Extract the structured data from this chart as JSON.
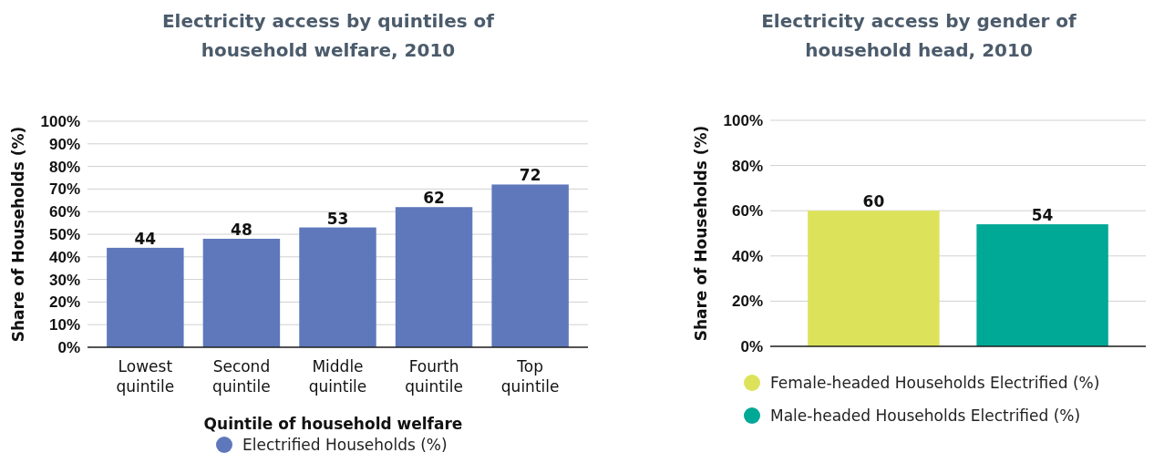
{
  "chart_data": [
    {
      "type": "bar",
      "title": "Electricity access by quintiles of household welfare, 2010",
      "xlabel": "Quintile of household welfare",
      "ylabel": "Share of Households (%)",
      "categories": [
        "Lowest quintile",
        "Second quintile",
        "Middle quintile",
        "Fourth quintile",
        "Top quintile"
      ],
      "series": [
        {
          "name": "Electrified Households (%)",
          "color": "#5e78bb",
          "values": [
            44,
            48,
            53,
            62,
            72
          ]
        }
      ],
      "ylim": [
        0,
        100
      ],
      "yticks": [
        {
          "value": 0,
          "label": "0%"
        },
        {
          "value": 10,
          "label": "10%"
        },
        {
          "value": 20,
          "label": "20%"
        },
        {
          "value": 30,
          "label": "30%"
        },
        {
          "value": 40,
          "label": "40%"
        },
        {
          "value": 50,
          "label": "50%"
        },
        {
          "value": 60,
          "label": "60%"
        },
        {
          "value": 70,
          "label": "70%"
        },
        {
          "value": 80,
          "label": "80%"
        },
        {
          "value": 90,
          "label": "90%"
        },
        {
          "value": 100,
          "label": "100%"
        }
      ],
      "grid": "y",
      "legend": "bottom",
      "data_labels": true
    },
    {
      "type": "bar",
      "title": "Electricity access by gender of household head, 2010",
      "ylabel": "Share of Households (%)",
      "categories": [
        null
      ],
      "series": [
        {
          "name": "Female-headed Households Electrified (%)",
          "color": "#dce35a",
          "values": [
            60
          ]
        },
        {
          "name": "Male-headed Households Electrified (%)",
          "color": "#00a896",
          "values": [
            54
          ]
        }
      ],
      "ylim": [
        0,
        100
      ],
      "yticks": [
        {
          "value": 0,
          "label": "0%"
        },
        {
          "value": 20,
          "label": "20%"
        },
        {
          "value": 40,
          "label": "40%"
        },
        {
          "value": 60,
          "label": "60%"
        },
        {
          "value": 80,
          "label": "80%"
        },
        {
          "value": 100,
          "label": "100%"
        }
      ],
      "grid": "y",
      "legend": "bottom",
      "data_labels": true
    }
  ]
}
